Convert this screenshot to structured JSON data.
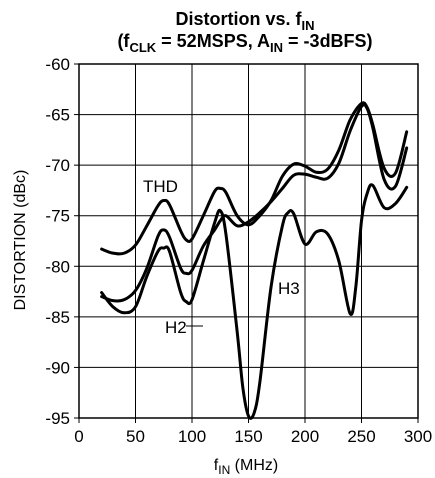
{
  "chart_data": {
    "type": "line",
    "title_line1": {
      "main": "Distortion vs. f",
      "sub": "IN"
    },
    "title_line2": {
      "p1": "(f",
      "sub1": "CLK",
      "p2": " = 52MSPS, A",
      "sub2": "IN",
      "p3": " = -3dBFS)"
    },
    "xlabel": {
      "main": "f",
      "sub": "IN",
      "rest": " (MHz)"
    },
    "ylabel": "DISTORTION (dBc)",
    "xlim": [
      0,
      300
    ],
    "ylim": [
      -95,
      -60
    ],
    "x_ticks": [
      0,
      50,
      100,
      150,
      200,
      250,
      300
    ],
    "x_tick_labels": [
      "0",
      "50",
      "100",
      "150",
      "200",
      "250",
      "300"
    ],
    "y_ticks": [
      -60,
      -65,
      -70,
      -75,
      -80,
      -85,
      -90,
      -95
    ],
    "y_tick_labels": [
      "-60",
      "-65",
      "-70",
      "-75",
      "-80",
      "-85",
      "-90",
      "-95"
    ],
    "grid": true,
    "series": [
      {
        "name": "THD",
        "x": [
          20,
          30,
          40,
          50,
          60,
          70,
          75,
          80,
          90,
          95,
          100,
          110,
          120,
          125,
          130,
          140,
          150,
          160,
          170,
          180,
          190,
          200,
          210,
          220,
          230,
          240,
          250,
          255,
          260,
          270,
          280,
          290
        ],
        "y": [
          -78.3,
          -78.7,
          -78.7,
          -77.9,
          -76.0,
          -74.0,
          -73.5,
          -73.9,
          -76.5,
          -77.4,
          -77.3,
          -75.0,
          -72.6,
          -72.3,
          -72.7,
          -75.0,
          -75.9,
          -75.0,
          -73.5,
          -71.1,
          -69.9,
          -70.1,
          -70.7,
          -70.4,
          -68.5,
          -65.5,
          -63.9,
          -64.3,
          -66.0,
          -70.3,
          -70.8,
          -66.7
        ]
      },
      {
        "name": "H2",
        "x": [
          20,
          30,
          40,
          50,
          60,
          70,
          75,
          80,
          90,
          95,
          100,
          110,
          120,
          125,
          130,
          140,
          150,
          160,
          170,
          180,
          190,
          200,
          210,
          220,
          230,
          240,
          250,
          255,
          260,
          270,
          280,
          290
        ],
        "y": [
          -83.0,
          -83.4,
          -83.3,
          -82.4,
          -80.2,
          -77.0,
          -76.4,
          -77.1,
          -80.2,
          -80.7,
          -80.4,
          -78.0,
          -76.4,
          -75.5,
          -75.0,
          -76.0,
          -75.6,
          -74.7,
          -73.6,
          -72.3,
          -71.0,
          -70.9,
          -71.2,
          -71.3,
          -69.8,
          -66.6,
          -64.2,
          -64.4,
          -66.3,
          -71.4,
          -72.1,
          -68.3
        ]
      },
      {
        "name": "H3",
        "x": [
          20,
          30,
          40,
          50,
          60,
          70,
          75,
          80,
          90,
          95,
          100,
          110,
          120,
          125,
          130,
          140,
          145,
          150,
          155,
          160,
          170,
          180,
          185,
          190,
          200,
          210,
          220,
          230,
          240,
          245,
          250,
          255,
          260,
          270,
          280,
          290
        ],
        "y": [
          -82.6,
          -84.0,
          -84.6,
          -84.0,
          -81.0,
          -78.5,
          -78.2,
          -78.5,
          -82.6,
          -83.5,
          -83.3,
          -79.5,
          -75.7,
          -74.5,
          -76.8,
          -86.5,
          -92.0,
          -94.8,
          -94.5,
          -91.5,
          -82.0,
          -76.0,
          -74.7,
          -74.8,
          -77.8,
          -76.6,
          -76.8,
          -79.5,
          -84.7,
          -82.0,
          -75.5,
          -72.8,
          -72.0,
          -74.2,
          -73.8,
          -72.2
        ]
      }
    ],
    "annotations": [
      {
        "text": "THD",
        "series": "THD"
      },
      {
        "text": "H2",
        "series": "H2"
      },
      {
        "text": "H3",
        "series": "H3"
      }
    ]
  }
}
